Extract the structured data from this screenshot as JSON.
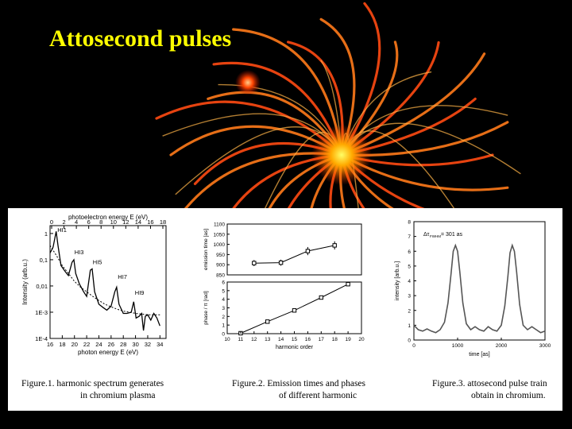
{
  "slide": {
    "title": "Attosecond pulses",
    "colors": {
      "background": "#000000",
      "title": "#ffff00",
      "burst": "#ff4a12",
      "panel": "#ffffff"
    },
    "decoration": "orange firework burst image"
  },
  "captions": {
    "fig1_line1": "Figure.1. harmonic spectrum generates",
    "fig1_line2": "in chromium plasma",
    "fig2_line1": "Figure.2. Emission times and phases",
    "fig2_line2": "of different  harmonic",
    "fig3_line1": "Figure.3. attosecond pulse train",
    "fig3_line2": "obtain in chromium."
  },
  "chart_data": [
    {
      "type": "line",
      "title": "",
      "xlabel": "photon energy E (eV)",
      "ylabel": "Intensity (arb.u.)",
      "top_axis_label": "photoelectron energy E (eV)",
      "xlim": [
        16,
        35
      ],
      "ylim_log10": [
        -4,
        0.3
      ],
      "x_ticks": [
        "16",
        "18",
        "20",
        "22",
        "24",
        "26",
        "28",
        "30",
        "32",
        "34"
      ],
      "top_ticks": [
        "0",
        "2",
        "4",
        "6",
        "8",
        "10",
        "12",
        "14",
        "16",
        "18"
      ],
      "y_ticks": [
        "1E-4",
        "1E-3",
        "0,01",
        "0,1",
        "1"
      ],
      "annotations": [
        {
          "text": "HI1",
          "x": 17.2,
          "y": 1.0
        },
        {
          "text": "HI3",
          "x": 20.0,
          "y": 0.14
        },
        {
          "text": "HI5",
          "x": 23.0,
          "y": 0.06
        },
        {
          "text": "HI7",
          "x": 27.1,
          "y": 0.016
        },
        {
          "text": "HI9",
          "x": 29.9,
          "y": 0.004
        }
      ],
      "series": [
        {
          "values": [
            [
              16,
              0.18
            ],
            [
              16.5,
              0.3
            ],
            [
              17,
              1.2
            ],
            [
              17.3,
              0.35
            ],
            [
              17.8,
              0.06
            ],
            [
              18.5,
              0.035
            ],
            [
              19,
              0.025
            ],
            [
              19.6,
              0.08
            ],
            [
              19.9,
              0.1
            ],
            [
              20.2,
              0.03
            ],
            [
              20.8,
              0.012
            ],
            [
              21.5,
              0.006
            ],
            [
              22,
              0.004
            ],
            [
              22.6,
              0.04
            ],
            [
              22.9,
              0.045
            ],
            [
              23.3,
              0.006
            ],
            [
              24,
              0.002
            ],
            [
              24.7,
              0.0015
            ],
            [
              25.3,
              0.0012
            ],
            [
              26,
              0.0017
            ],
            [
              26.6,
              0.006
            ],
            [
              26.9,
              0.009
            ],
            [
              27.3,
              0.002
            ],
            [
              28,
              0.0009
            ],
            [
              28.6,
              0.0009
            ],
            [
              29.3,
              0.001
            ],
            [
              29.7,
              0.0025
            ],
            [
              30.1,
              0.0006
            ],
            [
              30.6,
              0.0007
            ],
            [
              31,
              0.0009
            ],
            [
              31.3,
              0.0002
            ],
            [
              31.6,
              0.0007
            ],
            [
              32,
              0.0008
            ],
            [
              32.5,
              0.0005
            ],
            [
              33,
              0.0009
            ],
            [
              33.5,
              0.0006
            ],
            [
              34,
              0.0003
            ]
          ]
        },
        {
          "values": [
            [
              16,
              0.35
            ],
            [
              17,
              0.15
            ],
            [
              18,
              0.06
            ],
            [
              19,
              0.03
            ],
            [
              20,
              0.015
            ],
            [
              21,
              0.009
            ],
            [
              22,
              0.006
            ],
            [
              23,
              0.004
            ],
            [
              24,
              0.0028
            ],
            [
              25,
              0.002
            ],
            [
              26,
              0.0016
            ],
            [
              27,
              0.0013
            ],
            [
              28,
              0.0011
            ],
            [
              29,
              0.001
            ],
            [
              30,
              0.0009
            ],
            [
              31,
              0.00085
            ],
            [
              32,
              0.0008
            ],
            [
              33,
              0.0008
            ],
            [
              34,
              0.0008
            ]
          ]
        }
      ]
    },
    {
      "type": "line",
      "title": "",
      "xlabel": "harmonic order",
      "x_ticks": [
        "10",
        "11",
        "12",
        "13",
        "14",
        "15",
        "16",
        "17",
        "18",
        "19",
        "20"
      ],
      "xlim": [
        10,
        20
      ],
      "panels": [
        {
          "ylabel": "emission time [as]",
          "ylim": [
            850,
            1100
          ],
          "y_ticks": [
            "850",
            "900",
            "950",
            "1000",
            "1050",
            "1100"
          ],
          "x": [
            12,
            14,
            16,
            18
          ],
          "values": [
            908,
            910,
            967,
            995
          ],
          "errors": [
            15,
            15,
            20,
            20
          ]
        },
        {
          "ylabel": "phase / π [rad]",
          "ylim": [
            0,
            6
          ],
          "y_ticks": [
            "0",
            "1",
            "2",
            "3",
            "4",
            "5",
            "6"
          ],
          "x": [
            11,
            13,
            15,
            17,
            19
          ],
          "values": [
            0.05,
            1.4,
            2.7,
            4.2,
            5.75
          ]
        }
      ]
    },
    {
      "type": "line",
      "title": "",
      "xlabel": "time [as]",
      "ylabel": "intensity [arb.u.]",
      "annotation": "Δτ",
      "annotation_sub": "FWHM",
      "annotation_value": "= 301 as",
      "xlim": [
        0,
        3000
      ],
      "ylim": [
        0,
        8
      ],
      "x_ticks": [
        "0",
        "1000",
        "2000",
        "3000"
      ],
      "y_ticks": [
        "0",
        "1",
        "2",
        "3",
        "4",
        "5",
        "6",
        "7",
        "8"
      ],
      "series": [
        {
          "values": [
            [
              0,
              1.0
            ],
            [
              100,
              0.7
            ],
            [
              200,
              0.6
            ],
            [
              300,
              0.75
            ],
            [
              400,
              0.6
            ],
            [
              500,
              0.5
            ],
            [
              600,
              0.7
            ],
            [
              700,
              1.2
            ],
            [
              780,
              2.5
            ],
            [
              850,
              4.5
            ],
            [
              900,
              6.0
            ],
            [
              950,
              6.4
            ],
            [
              1000,
              6.0
            ],
            [
              1050,
              4.6
            ],
            [
              1120,
              2.5
            ],
            [
              1200,
              1.1
            ],
            [
              1300,
              0.7
            ],
            [
              1400,
              0.9
            ],
            [
              1500,
              0.7
            ],
            [
              1600,
              0.6
            ],
            [
              1700,
              0.9
            ],
            [
              1800,
              0.7
            ],
            [
              1900,
              0.6
            ],
            [
              2000,
              1.0
            ],
            [
              2080,
              2.3
            ],
            [
              2150,
              4.3
            ],
            [
              2200,
              5.9
            ],
            [
              2250,
              6.4
            ],
            [
              2300,
              6.0
            ],
            [
              2350,
              4.6
            ],
            [
              2420,
              2.4
            ],
            [
              2500,
              1.0
            ],
            [
              2600,
              0.7
            ],
            [
              2700,
              0.9
            ],
            [
              2800,
              0.7
            ],
            [
              2900,
              0.5
            ],
            [
              3000,
              0.6
            ]
          ]
        }
      ]
    }
  ]
}
